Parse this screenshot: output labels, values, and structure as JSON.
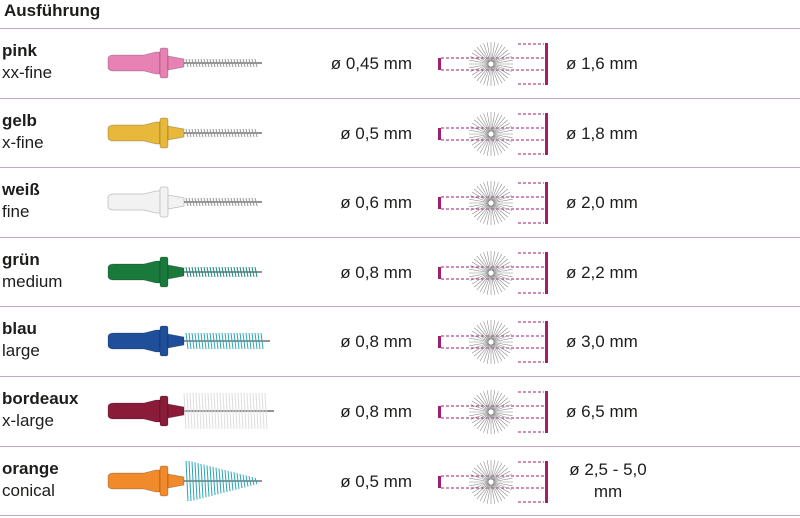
{
  "header": "Ausführung",
  "rows": [
    {
      "color_name": "pink",
      "fineness": "xx-fine",
      "wire": "ø 0,45 mm",
      "size": "ø 1,6 mm",
      "color": "#e882b4",
      "style": "thin"
    },
    {
      "color_name": "gelb",
      "fineness": "x-fine",
      "wire": "ø 0,5 mm",
      "size": "ø 1,8 mm",
      "color": "#e7b83a",
      "style": "thin"
    },
    {
      "color_name": "weiß",
      "fineness": "fine",
      "wire": "ø 0,6 mm",
      "size": "ø 2,0 mm",
      "color": "#f2f2f2",
      "style": "thin"
    },
    {
      "color_name": "grün",
      "fineness": "medium",
      "wire": "ø 0,8 mm",
      "size": "ø 2,2 mm",
      "color": "#1a7a3c",
      "style": "medium"
    },
    {
      "color_name": "blau",
      "fineness": "large",
      "wire": "ø 0,8 mm",
      "size": "ø 3,0 mm",
      "color": "#1f4f9a",
      "style": "large"
    },
    {
      "color_name": "bordeaux",
      "fineness": "x-large",
      "wire": "ø 0,8 mm",
      "size": "ø 6,5 mm",
      "color": "#8a1c3a",
      "style": "xlarge"
    },
    {
      "color_name": "orange",
      "fineness": "conical",
      "wire": "ø 0,5 mm",
      "size": "ø 2,5 - 5,0 mm",
      "color": "#f08a2a",
      "style": "conical"
    }
  ],
  "accent_color": "#a01e6e"
}
